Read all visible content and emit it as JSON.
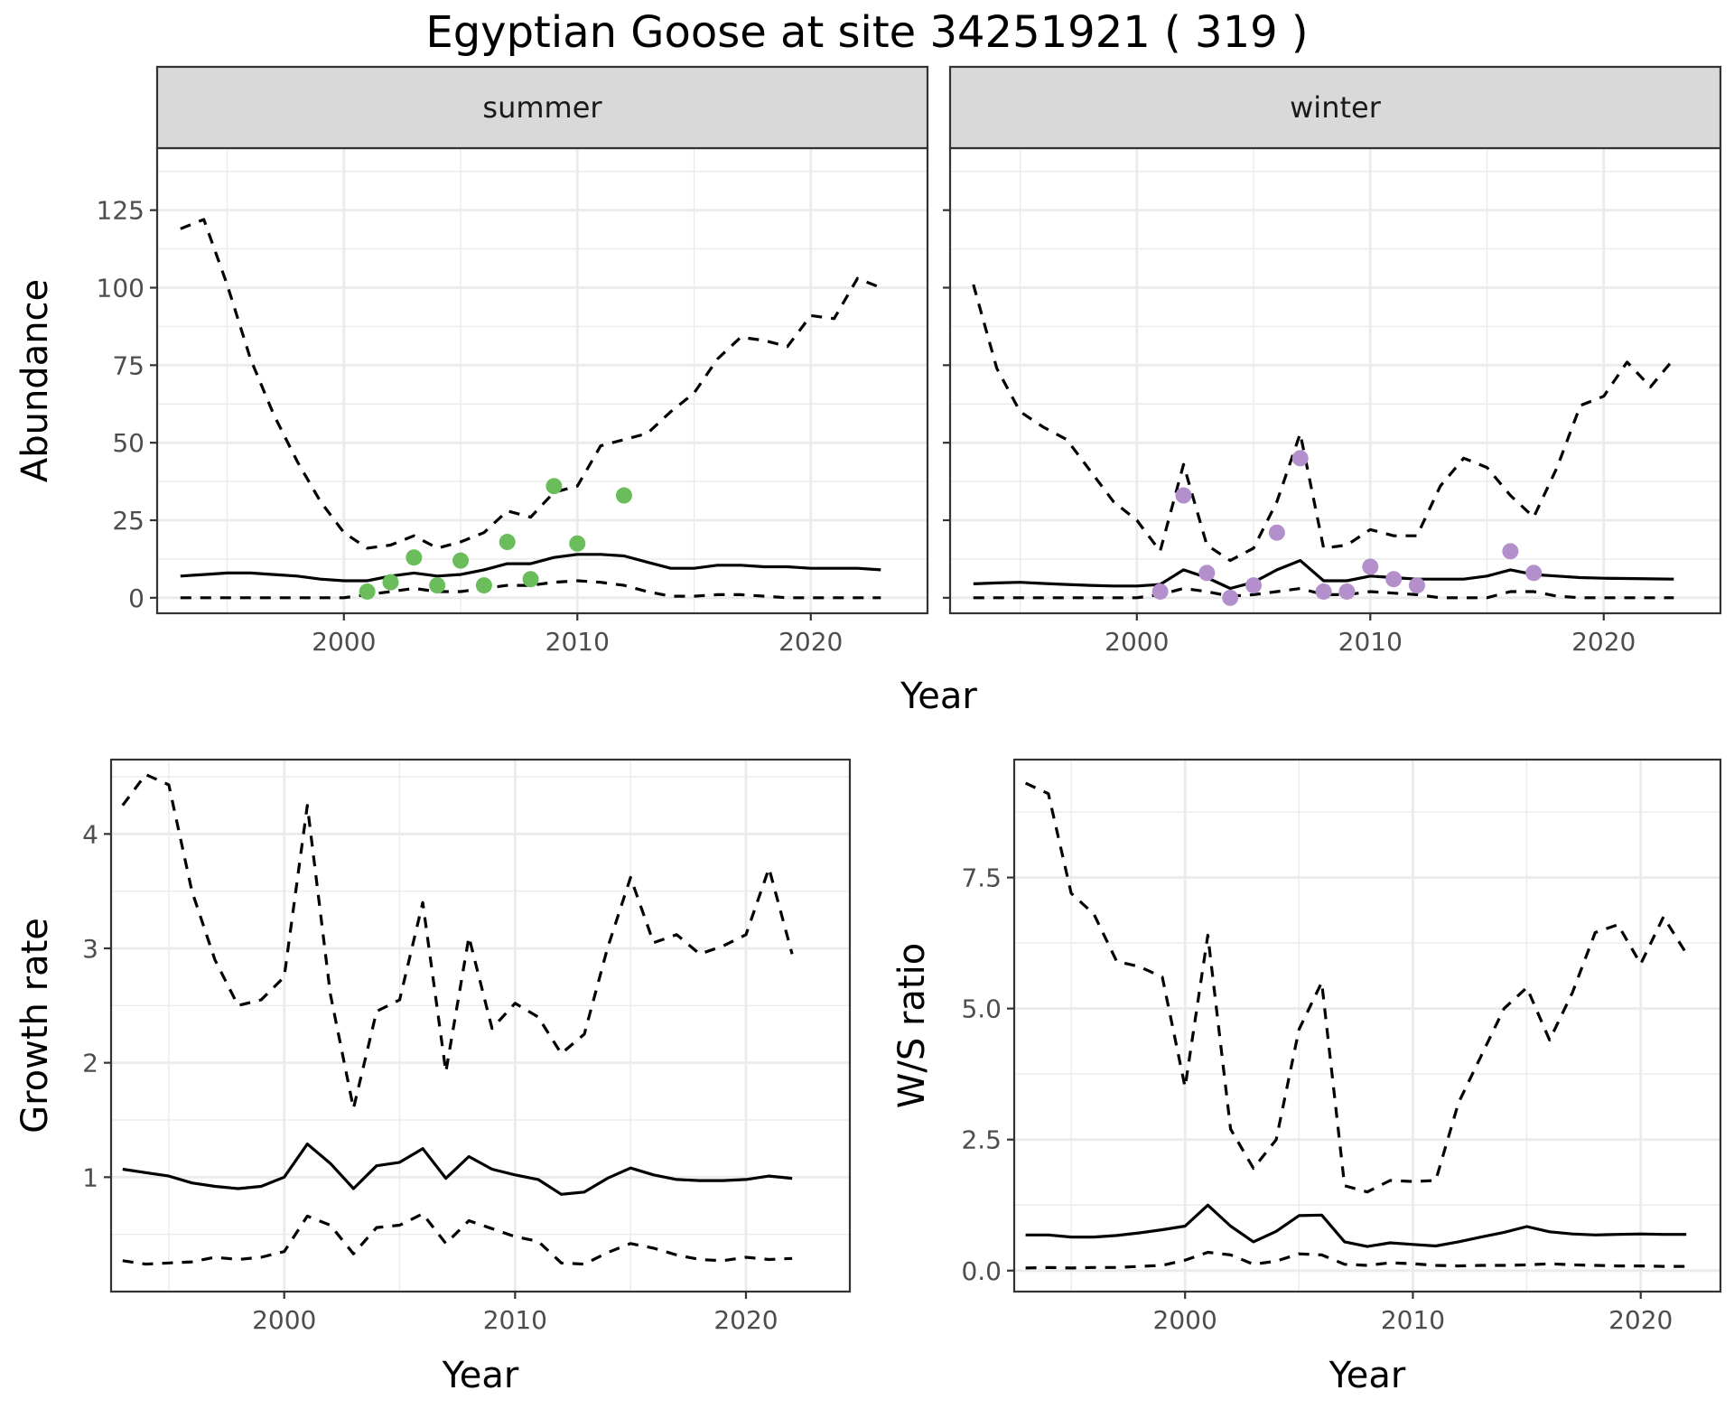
{
  "title": "Egyptian Goose at site 34251921 ( 319 )",
  "chart_data": [
    {
      "type": "line",
      "facet": "summer",
      "xlabel": "Year",
      "ylabel": "Abundance",
      "xlim": [
        1992,
        2025
      ],
      "ylim": [
        -5,
        145
      ],
      "xticks": [
        2000,
        2010,
        2020
      ],
      "yticks": [
        0,
        25,
        50,
        75,
        100,
        125
      ],
      "ytick_labels": [
        "0",
        "25",
        "50",
        "75",
        "100",
        "125"
      ],
      "point_color": "#6abd5a",
      "series": [
        {
          "role": "estimate",
          "style": "solid",
          "x": [
            1993,
            1994,
            1995,
            1996,
            1997,
            1998,
            1999,
            2000,
            2001,
            2002,
            2003,
            2004,
            2005,
            2006,
            2007,
            2008,
            2009,
            2010,
            2011,
            2012,
            2013,
            2014,
            2015,
            2016,
            2017,
            2018,
            2019,
            2020,
            2021,
            2022,
            2023
          ],
          "y": [
            7,
            7.5,
            8,
            8,
            7.5,
            7,
            6,
            5.5,
            5.5,
            7,
            8,
            7,
            7.5,
            9,
            11,
            11,
            13,
            14,
            14,
            13.5,
            11.5,
            9.5,
            9.5,
            10.5,
            10.5,
            10,
            10,
            9.5,
            9.5,
            9.5,
            9
          ]
        },
        {
          "role": "upper",
          "style": "dashed",
          "x": [
            1993,
            1994,
            1995,
            1996,
            1997,
            1998,
            1999,
            2000,
            2001,
            2002,
            2003,
            2004,
            2005,
            2006,
            2007,
            2008,
            2009,
            2010,
            2011,
            2012,
            2013,
            2014,
            2015,
            2016,
            2017,
            2018,
            2019,
            2020,
            2021,
            2022,
            2023
          ],
          "y": [
            119,
            122,
            101,
            77,
            59,
            44,
            31,
            21,
            16,
            17,
            20,
            16,
            18,
            21,
            28,
            26,
            34,
            36,
            49,
            51,
            53,
            60,
            66,
            77,
            84,
            83,
            81,
            91,
            90,
            103,
            100
          ]
        },
        {
          "role": "lower",
          "style": "dashed",
          "x": [
            1993,
            1994,
            1995,
            1996,
            1997,
            1998,
            1999,
            2000,
            2001,
            2002,
            2003,
            2004,
            2005,
            2006,
            2007,
            2008,
            2009,
            2010,
            2011,
            2012,
            2013,
            2014,
            2015,
            2016,
            2017,
            2018,
            2019,
            2020,
            2021,
            2022,
            2023
          ],
          "y": [
            0,
            0,
            0,
            0,
            0,
            0,
            0,
            0,
            1,
            2,
            3,
            2,
            2,
            3,
            4,
            4,
            5,
            5.5,
            5,
            4,
            2,
            0.5,
            0.5,
            1,
            1,
            0.5,
            0,
            0,
            0,
            0,
            0
          ]
        },
        {
          "role": "observed",
          "style": "points",
          "x": [
            2001,
            2002,
            2003,
            2004,
            2005,
            2006,
            2007,
            2008,
            2009,
            2010,
            2012
          ],
          "y": [
            2,
            5,
            13,
            4,
            12,
            4,
            18,
            6,
            36,
            17.5,
            33
          ]
        }
      ]
    },
    {
      "type": "line",
      "facet": "winter",
      "xlabel": "Year",
      "ylabel": "Abundance",
      "xlim": [
        1992,
        2025
      ],
      "ylim": [
        -5,
        145
      ],
      "xticks": [
        2000,
        2010,
        2020
      ],
      "yticks": [
        0,
        25,
        50,
        75,
        100,
        125
      ],
      "point_color": "#b38fcb",
      "series": [
        {
          "role": "estimate",
          "style": "solid",
          "x": [
            1993,
            1994,
            1995,
            1996,
            1997,
            1998,
            1999,
            2000,
            2001,
            2002,
            2003,
            2004,
            2005,
            2006,
            2007,
            2008,
            2009,
            2010,
            2011,
            2012,
            2013,
            2014,
            2015,
            2016,
            2017,
            2018,
            2019,
            2020,
            2021,
            2022,
            2023
          ],
          "y": [
            4.5,
            4.8,
            5,
            4.6,
            4.3,
            4,
            3.8,
            3.8,
            4.3,
            9,
            6.5,
            3,
            5,
            9,
            12,
            5.5,
            5.5,
            7,
            6.5,
            6,
            6,
            6,
            7,
            9,
            7.5,
            7,
            6.5,
            6.3,
            6.2,
            6.1,
            6
          ]
        },
        {
          "role": "upper",
          "style": "dashed",
          "x": [
            1993,
            1994,
            1995,
            1996,
            1997,
            1998,
            1999,
            2000,
            2001,
            2002,
            2003,
            2004,
            2005,
            2006,
            2007,
            2008,
            2009,
            2010,
            2011,
            2012,
            2013,
            2014,
            2015,
            2016,
            2017,
            2018,
            2019,
            2020,
            2021,
            2022,
            2023
          ],
          "y": [
            101,
            74,
            60,
            55,
            51,
            41,
            31,
            25,
            15,
            43,
            17,
            12,
            16,
            31,
            53,
            16,
            17,
            22,
            20,
            20,
            36,
            45,
            42,
            33,
            26,
            42,
            62,
            65,
            76,
            68,
            77
          ]
        },
        {
          "role": "lower",
          "style": "dashed",
          "x": [
            1993,
            1994,
            1995,
            1996,
            1997,
            1998,
            1999,
            2000,
            2001,
            2002,
            2003,
            2004,
            2005,
            2006,
            2007,
            2008,
            2009,
            2010,
            2011,
            2012,
            2013,
            2014,
            2015,
            2016,
            2017,
            2018,
            2019,
            2020,
            2021,
            2022,
            2023
          ],
          "y": [
            0,
            0,
            0,
            0,
            0,
            0,
            0,
            0,
            1,
            3,
            2,
            0.5,
            1,
            2,
            3,
            1,
            1,
            2,
            1.5,
            1,
            0,
            0,
            0,
            2,
            2,
            0.5,
            0,
            0,
            0,
            0,
            0
          ]
        },
        {
          "role": "observed",
          "style": "points",
          "x": [
            2001,
            2002,
            2003,
            2004,
            2005,
            2006,
            2007,
            2008,
            2009,
            2010,
            2011,
            2012,
            2016,
            2017
          ],
          "y": [
            2,
            33,
            8,
            0,
            4,
            21,
            45,
            2,
            2,
            10,
            6,
            4,
            15,
            8
          ]
        }
      ]
    },
    {
      "type": "line",
      "facet": "growth",
      "xlabel": "Year",
      "ylabel": "Growth rate",
      "xlim": [
        1992.5,
        2024.5
      ],
      "ylim": [
        0.0,
        4.65
      ],
      "xticks": [
        2000,
        2010,
        2020
      ],
      "yticks": [
        1,
        2,
        3,
        4
      ],
      "series": [
        {
          "role": "estimate",
          "style": "solid",
          "x": [
            1993,
            1994,
            1995,
            1996,
            1997,
            1998,
            1999,
            2000,
            2001,
            2002,
            2003,
            2004,
            2005,
            2006,
            2007,
            2008,
            2009,
            2010,
            2011,
            2012,
            2013,
            2014,
            2015,
            2016,
            2017,
            2018,
            2019,
            2020,
            2021,
            2022
          ],
          "y": [
            1.07,
            1.04,
            1.01,
            0.95,
            0.92,
            0.9,
            0.92,
            1.0,
            1.29,
            1.12,
            0.9,
            1.1,
            1.13,
            1.25,
            0.99,
            1.18,
            1.07,
            1.02,
            0.98,
            0.85,
            0.87,
            0.99,
            1.08,
            1.02,
            0.98,
            0.97,
            0.97,
            0.98,
            1.01,
            0.99
          ]
        },
        {
          "role": "upper",
          "style": "dashed",
          "x": [
            1993,
            1994,
            1995,
            1996,
            1997,
            1998,
            1999,
            2000,
            2001,
            2002,
            2003,
            2004,
            2005,
            2006,
            2007,
            2008,
            2009,
            2010,
            2011,
            2012,
            2013,
            2014,
            2015,
            2016,
            2017,
            2018,
            2019,
            2020,
            2021,
            2022
          ],
          "y": [
            4.25,
            4.52,
            4.43,
            3.5,
            2.9,
            2.5,
            2.55,
            2.75,
            4.25,
            2.6,
            1.6,
            2.45,
            2.55,
            3.4,
            1.92,
            3.1,
            2.3,
            2.52,
            2.4,
            2.08,
            2.25,
            3.0,
            3.62,
            3.05,
            3.12,
            2.95,
            3.02,
            3.12,
            3.7,
            2.95
          ]
        },
        {
          "role": "lower",
          "style": "dashed",
          "x": [
            1993,
            1994,
            1995,
            1996,
            1997,
            1998,
            1999,
            2000,
            2001,
            2002,
            2003,
            2004,
            2005,
            2006,
            2007,
            2008,
            2009,
            2010,
            2011,
            2012,
            2013,
            2014,
            2015,
            2016,
            2017,
            2018,
            2019,
            2020,
            2021,
            2022
          ],
          "y": [
            0.27,
            0.24,
            0.25,
            0.26,
            0.3,
            0.28,
            0.3,
            0.35,
            0.66,
            0.58,
            0.33,
            0.56,
            0.58,
            0.68,
            0.42,
            0.62,
            0.55,
            0.48,
            0.44,
            0.25,
            0.24,
            0.34,
            0.42,
            0.38,
            0.32,
            0.28,
            0.27,
            0.3,
            0.28,
            0.29
          ]
        }
      ]
    },
    {
      "type": "line",
      "facet": "ratio",
      "xlabel": "Year",
      "ylabel": "W/S ratio",
      "xlim": [
        1992.5,
        2023.5
      ],
      "ylim": [
        -0.4,
        9.75
      ],
      "xticks": [
        2000,
        2010,
        2020
      ],
      "yticks": [
        0,
        2.5,
        5,
        7.5
      ],
      "ytick_labels": [
        "0.0",
        "2.5",
        "5.0",
        "7.5"
      ],
      "series": [
        {
          "role": "estimate",
          "style": "solid",
          "x": [
            1993,
            1994,
            1995,
            1996,
            1997,
            1998,
            1999,
            2000,
            2001,
            2002,
            2003,
            2004,
            2005,
            2006,
            2007,
            2008,
            2009,
            2010,
            2011,
            2012,
            2013,
            2014,
            2015,
            2016,
            2017,
            2018,
            2019,
            2020,
            2021,
            2022
          ],
          "y": [
            0.68,
            0.68,
            0.64,
            0.64,
            0.67,
            0.72,
            0.78,
            0.85,
            1.25,
            0.85,
            0.55,
            0.75,
            1.05,
            1.06,
            0.55,
            0.46,
            0.53,
            0.5,
            0.47,
            0.55,
            0.64,
            0.73,
            0.84,
            0.74,
            0.7,
            0.68,
            0.69,
            0.7,
            0.69,
            0.69
          ]
        },
        {
          "role": "upper",
          "style": "dashed",
          "x": [
            1993,
            1994,
            1995,
            1996,
            1997,
            1998,
            1999,
            2000,
            2001,
            2002,
            2003,
            2004,
            2005,
            2006,
            2007,
            2008,
            2009,
            2010,
            2011,
            2012,
            2013,
            2014,
            2015,
            2016,
            2017,
            2018,
            2019,
            2020,
            2021,
            2022
          ],
          "y": [
            9.3,
            9.1,
            7.2,
            6.8,
            5.9,
            5.8,
            5.6,
            3.5,
            6.4,
            2.7,
            1.95,
            2.5,
            4.6,
            5.5,
            1.62,
            1.5,
            1.72,
            1.7,
            1.72,
            3.2,
            4.1,
            5.0,
            5.4,
            4.4,
            5.3,
            6.45,
            6.6,
            5.85,
            6.75,
            6.05
          ]
        },
        {
          "role": "lower",
          "style": "dashed",
          "x": [
            1993,
            1994,
            1995,
            1996,
            1997,
            1998,
            1999,
            2000,
            2001,
            2002,
            2003,
            2004,
            2005,
            2006,
            2007,
            2008,
            2009,
            2010,
            2011,
            2012,
            2013,
            2014,
            2015,
            2016,
            2017,
            2018,
            2019,
            2020,
            2021,
            2022
          ],
          "y": [
            0.05,
            0.06,
            0.05,
            0.06,
            0.06,
            0.08,
            0.1,
            0.2,
            0.35,
            0.3,
            0.12,
            0.18,
            0.32,
            0.3,
            0.12,
            0.1,
            0.15,
            0.13,
            0.1,
            0.09,
            0.1,
            0.1,
            0.11,
            0.13,
            0.11,
            0.1,
            0.09,
            0.09,
            0.08,
            0.08
          ]
        }
      ]
    }
  ]
}
